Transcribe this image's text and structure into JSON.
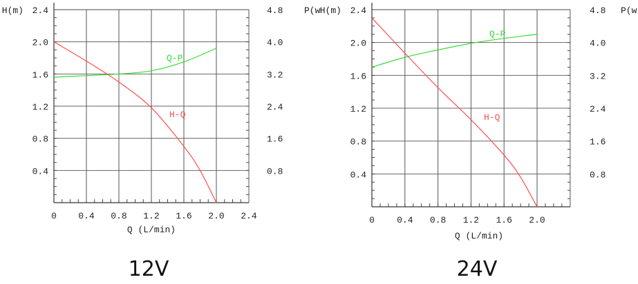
{
  "chart_data": [
    {
      "type": "line",
      "title": "12V",
      "xlabel": "Q (L/min)",
      "ylabel": "H(m)",
      "y2label": "P(w",
      "xlim": [
        0,
        2.4
      ],
      "ylim": [
        0,
        2.4
      ],
      "y2lim": [
        0,
        4.8
      ],
      "x_ticks": [
        "0",
        "0.4",
        "0.8",
        "1.2",
        "1.6",
        "2.0",
        "2.4"
      ],
      "y_ticks": [
        "0.4",
        "0.8",
        "1.2",
        "1.6",
        "2.0",
        "2.4"
      ],
      "y2_ticks": [
        "0.8",
        "1.6",
        "2.4",
        "3.2",
        "4.0",
        "4.8"
      ],
      "grid": true,
      "series": [
        {
          "name": "H-Q",
          "axis": "left",
          "color": "#ff4d4d",
          "x": [
            0,
            0.4,
            0.8,
            1.2,
            1.6,
            1.8,
            2.0
          ],
          "y": [
            2.0,
            1.76,
            1.5,
            1.18,
            0.7,
            0.4,
            0.0
          ]
        },
        {
          "name": "Q-P",
          "axis": "right",
          "color": "#33dd33",
          "x": [
            0,
            0.4,
            0.8,
            1.2,
            1.6,
            2.0
          ],
          "y": [
            3.12,
            3.16,
            3.2,
            3.28,
            3.5,
            3.84
          ]
        }
      ]
    },
    {
      "type": "line",
      "title": "24V",
      "xlabel": "Q (L/min)",
      "ylabel": "H(m)",
      "y2label": "P(w)",
      "xlim": [
        0,
        2.4
      ],
      "ylim": [
        0,
        2.4
      ],
      "y2lim": [
        0,
        4.8
      ],
      "x_ticks": [
        "0",
        "0.4",
        "0.8",
        "1.2",
        "1.6",
        "2.0"
      ],
      "y_ticks": [
        "0.4",
        "0.8",
        "1.2",
        "1.6",
        "2.0",
        "2.4"
      ],
      "y2_ticks": [
        "0.8",
        "1.6",
        "2.4",
        "3.2",
        "4.0",
        "4.8"
      ],
      "grid": true,
      "series": [
        {
          "name": "H-Q",
          "axis": "left",
          "color": "#ff4d4d",
          "x": [
            0,
            0.4,
            0.8,
            1.2,
            1.6,
            1.8,
            2.0
          ],
          "y": [
            2.3,
            1.87,
            1.45,
            1.06,
            0.63,
            0.36,
            0.0
          ]
        },
        {
          "name": "Q-P",
          "axis": "right",
          "color": "#33dd33",
          "x": [
            0,
            0.4,
            0.8,
            1.2,
            1.6,
            2.0
          ],
          "y": [
            3.4,
            3.64,
            3.82,
            3.98,
            4.1,
            4.2
          ]
        }
      ]
    }
  ]
}
